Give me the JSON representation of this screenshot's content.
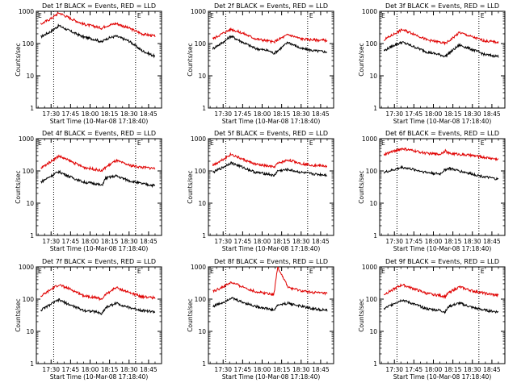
{
  "panels": [
    {
      "title": "Det 1f BLACK = Events, RED = LLD"
    },
    {
      "title": "Det 2f BLACK = Events, RED = LLD"
    },
    {
      "title": "Det 3f BLACK = Events, RED = LLD"
    },
    {
      "title": "Det 4f BLACK = Events, RED = LLD"
    },
    {
      "title": "Det 5f BLACK = Events, RED = LLD"
    },
    {
      "title": "Det 6f BLACK = Events, RED = LLD"
    },
    {
      "title": "Det 7f BLACK = Events, RED = LLD"
    },
    {
      "title": "Det 8f BLACK = Events, RED = LLD"
    },
    {
      "title": "Det 9f BLACK = Events, RED = LLD"
    }
  ],
  "xlabel": "Start Time (10-Mar-08 17:18:40)",
  "ylabel": "Counts/sec",
  "x_tick_labels": [
    "17:30",
    "17:45",
    "18:00",
    "18:15",
    "18:30",
    "18:45"
  ],
  "y_tick_labels": [
    "1",
    "10",
    "100",
    "1000"
  ],
  "markers": {
    "start_label": "E",
    "end_label": "E"
  },
  "colors": {
    "events": "#000000",
    "lld": "#e00000",
    "axes": "#000000"
  },
  "chart_data": [
    {
      "type": "line",
      "title": "Det 1f BLACK = Events, RED = LLD",
      "xlabel": "Start Time (10-Mar-08 17:18:40)",
      "ylabel": "Counts/sec",
      "y_scale": "log",
      "ylim": [
        1,
        1000
      ],
      "x": [
        "17:22",
        "17:30",
        "17:36",
        "17:45",
        "17:55",
        "18:05",
        "18:09",
        "18:12",
        "18:20",
        "18:30",
        "18:40",
        "18:50"
      ],
      "series": [
        {
          "values": [
            160,
            240,
            360,
            240,
            160,
            130,
            110,
            140,
            170,
            120,
            60,
            40
          ]
        },
        {
          "values": [
            400,
            600,
            900,
            600,
            400,
            330,
            300,
            350,
            420,
            300,
            200,
            170
          ]
        }
      ],
      "vlines": [
        "17:32",
        "18:35"
      ]
    },
    {
      "type": "line",
      "title": "Det 2f BLACK = Events, RED = LLD",
      "xlabel": "Start Time (10-Mar-08 17:18:40)",
      "ylabel": "Counts/sec",
      "y_scale": "log",
      "ylim": [
        1,
        1000
      ],
      "x": [
        "17:22",
        "17:30",
        "17:36",
        "17:45",
        "17:55",
        "18:05",
        "18:09",
        "18:12",
        "18:20",
        "18:30",
        "18:40",
        "18:50"
      ],
      "series": [
        {
          "values": [
            70,
            110,
            170,
            110,
            70,
            60,
            50,
            60,
            110,
            70,
            60,
            55
          ]
        },
        {
          "values": [
            140,
            210,
            280,
            210,
            140,
            120,
            110,
            130,
            190,
            140,
            130,
            125
          ]
        }
      ],
      "vlines": [
        "17:32",
        "18:35"
      ]
    },
    {
      "type": "line",
      "title": "Det 3f BLACK = Events, RED = LLD",
      "xlabel": "Start Time (10-Mar-08 17:18:40)",
      "ylabel": "Counts/sec",
      "y_scale": "log",
      "ylim": [
        1,
        1000
      ],
      "x": [
        "17:22",
        "17:30",
        "17:36",
        "17:45",
        "17:55",
        "18:05",
        "18:09",
        "18:12",
        "18:20",
        "18:30",
        "18:40",
        "18:50"
      ],
      "series": [
        {
          "values": [
            60,
            90,
            110,
            80,
            55,
            45,
            40,
            50,
            90,
            65,
            45,
            40
          ]
        },
        {
          "values": [
            130,
            200,
            270,
            200,
            130,
            110,
            100,
            120,
            220,
            160,
            120,
            110
          ]
        }
      ],
      "vlines": [
        "17:32",
        "18:35"
      ]
    },
    {
      "type": "line",
      "title": "Det 4f BLACK = Events, RED = LLD",
      "xlabel": "Start Time (10-Mar-08 17:18:40)",
      "ylabel": "Counts/sec",
      "y_scale": "log",
      "ylim": [
        1,
        1000
      ],
      "x": [
        "17:22",
        "17:30",
        "17:36",
        "17:45",
        "17:55",
        "18:05",
        "18:09",
        "18:12",
        "18:20",
        "18:30",
        "18:40",
        "18:50"
      ],
      "series": [
        {
          "values": [
            45,
            70,
            95,
            65,
            45,
            40,
            35,
            60,
            70,
            50,
            40,
            35
          ]
        },
        {
          "values": [
            120,
            200,
            290,
            200,
            130,
            110,
            100,
            130,
            210,
            150,
            130,
            120
          ]
        }
      ],
      "vlines": [
        "17:32",
        "18:35"
      ]
    },
    {
      "type": "line",
      "title": "Det 5f BLACK = Events, RED = LLD",
      "xlabel": "Start Time (10-Mar-08 17:18:40)",
      "ylabel": "Counts/sec",
      "y_scale": "log",
      "ylim": [
        1,
        1000
      ],
      "x": [
        "17:22",
        "17:30",
        "17:36",
        "17:45",
        "17:55",
        "18:05",
        "18:09",
        "18:12",
        "18:20",
        "18:30",
        "18:40",
        "18:50"
      ],
      "series": [
        {
          "values": [
            90,
            130,
            180,
            130,
            90,
            80,
            70,
            100,
            110,
            90,
            80,
            75
          ]
        },
        {
          "values": [
            150,
            230,
            330,
            230,
            160,
            140,
            130,
            170,
            220,
            170,
            150,
            140
          ]
        }
      ],
      "vlines": [
        "17:32",
        "18:35"
      ]
    },
    {
      "type": "line",
      "title": "Det 6f BLACK = Events, RED = LLD",
      "xlabel": "Start Time (10-Mar-08 17:18:40)",
      "ylabel": "Counts/sec",
      "y_scale": "log",
      "ylim": [
        1,
        1000
      ],
      "x": [
        "17:22",
        "17:30",
        "17:36",
        "17:45",
        "17:55",
        "18:05",
        "18:09",
        "18:12",
        "18:20",
        "18:30",
        "18:40",
        "18:50"
      ],
      "series": [
        {
          "values": [
            90,
            110,
            130,
            110,
            90,
            80,
            110,
            120,
            100,
            80,
            65,
            55
          ]
        },
        {
          "values": [
            320,
            420,
            490,
            420,
            350,
            330,
            420,
            350,
            330,
            300,
            260,
            230
          ]
        }
      ],
      "vlines": [
        "17:32",
        "18:35"
      ]
    },
    {
      "type": "line",
      "title": "Det 7f BLACK = Events, RED = LLD",
      "xlabel": "Start Time (10-Mar-08 17:18:40)",
      "ylabel": "Counts/sec",
      "y_scale": "log",
      "ylim": [
        1,
        1000
      ],
      "x": [
        "17:22",
        "17:30",
        "17:36",
        "17:45",
        "17:55",
        "18:05",
        "18:09",
        "18:12",
        "18:20",
        "18:30",
        "18:40",
        "18:50"
      ],
      "series": [
        {
          "values": [
            45,
            70,
            95,
            65,
            45,
            40,
            35,
            55,
            75,
            55,
            45,
            40
          ]
        },
        {
          "values": [
            120,
            200,
            280,
            200,
            130,
            110,
            100,
            140,
            230,
            160,
            120,
            110
          ]
        }
      ],
      "vlines": [
        "17:32",
        "18:35"
      ]
    },
    {
      "type": "line",
      "title": "Det 8f BLACK = Events, RED = LLD",
      "xlabel": "Start Time (10-Mar-08 17:18:40)",
      "ylabel": "Counts/sec",
      "y_scale": "log",
      "ylim": [
        1,
        1000
      ],
      "x": [
        "17:22",
        "17:30",
        "17:36",
        "17:45",
        "17:55",
        "18:05",
        "18:09",
        "18:12",
        "18:20",
        "18:30",
        "18:40",
        "18:50"
      ],
      "series": [
        {
          "values": [
            60,
            80,
            110,
            80,
            60,
            50,
            45,
            65,
            75,
            60,
            50,
            45
          ]
        },
        {
          "values": [
            170,
            240,
            330,
            240,
            170,
            150,
            140,
            1000,
            230,
            180,
            160,
            150
          ]
        }
      ],
      "vlines": [
        "17:32",
        "18:35"
      ]
    },
    {
      "type": "line",
      "title": "Det 9f BLACK = Events, RED = LLD",
      "xlabel": "Start Time (10-Mar-08 17:18:40)",
      "ylabel": "Counts/sec",
      "y_scale": "log",
      "ylim": [
        1,
        1000
      ],
      "x": [
        "17:22",
        "17:30",
        "17:36",
        "17:45",
        "17:55",
        "18:05",
        "18:09",
        "18:12",
        "18:20",
        "18:30",
        "18:40",
        "18:50"
      ],
      "series": [
        {
          "values": [
            50,
            75,
            95,
            70,
            50,
            45,
            40,
            60,
            75,
            55,
            45,
            40
          ]
        },
        {
          "values": [
            140,
            210,
            280,
            210,
            150,
            130,
            120,
            160,
            240,
            180,
            150,
            130
          ]
        }
      ],
      "vlines": [
        "17:32",
        "18:35"
      ]
    }
  ]
}
